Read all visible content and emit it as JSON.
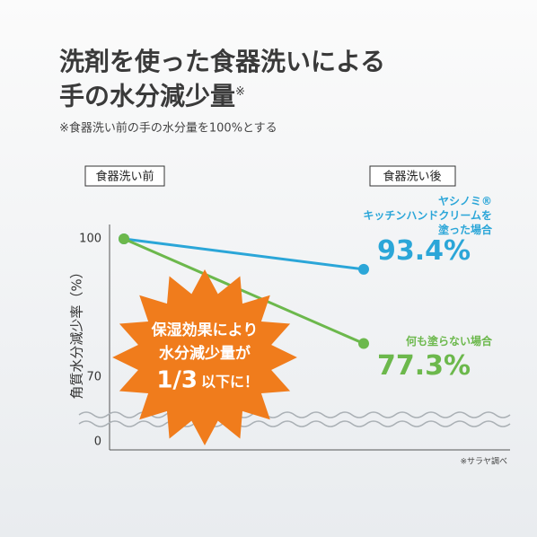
{
  "chart_data": {
    "type": "line",
    "title": "洗剤を使った食器洗いによる\n手の水分減少量",
    "title_mark": "※",
    "subtitle": "※食器洗い前の手の水分量を100%とする",
    "categories": [
      "食器洗い前",
      "食器洗い後"
    ],
    "y_label": "角質水分減少率（%）",
    "ylim": [
      0,
      100
    ],
    "yticks": [
      0,
      70,
      100
    ],
    "axis_break": true,
    "series": [
      {
        "name": "ヤシノミ® \nキッチンハンドクリームを\n塗った場合",
        "color": "#2ba6d8",
        "values": [
          100,
          93.4
        ],
        "value_labels": [
          null,
          "93.4%"
        ]
      },
      {
        "name": "何も塗らない場合",
        "color": "#6cb84c",
        "values": [
          100,
          77.3
        ],
        "value_labels": [
          null,
          "77.3%"
        ]
      }
    ],
    "burst_lines": [
      "保湿効果により",
      "水分減少量が"
    ],
    "burst_highlight": "1/3",
    "burst_tail": "以下に！",
    "burst_color": "#f07c1c",
    "source": "※サラヤ調べ"
  }
}
